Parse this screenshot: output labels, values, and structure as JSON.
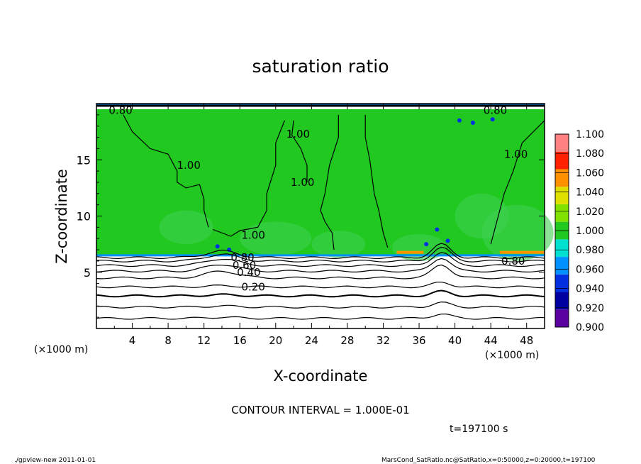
{
  "chart_data": {
    "type": "heatmap",
    "title": "saturation ratio",
    "xlabel": "X-coordinate",
    "ylabel": "Z-coordinate",
    "x_unit_left": "(×1000 m)",
    "x_unit_right": "(×1000 m)",
    "xlim": [
      0,
      50
    ],
    "ylim": [
      0,
      20
    ],
    "x_ticks": [
      4,
      8,
      12,
      16,
      20,
      24,
      28,
      32,
      36,
      40,
      44,
      48
    ],
    "x_tick_labels": [
      "4",
      "8",
      "12",
      "16",
      "20",
      "24",
      "28",
      "32",
      "36",
      "40",
      "44",
      "48"
    ],
    "y_ticks": [
      5,
      10,
      15
    ],
    "y_tick_labels": [
      "5",
      "10",
      "15"
    ],
    "colorbar": {
      "levels": [
        0.9,
        0.92,
        0.94,
        0.96,
        0.98,
        1.0,
        1.02,
        1.04,
        1.06,
        1.08,
        1.1
      ],
      "labels": [
        "0.900",
        "0.920",
        "0.940",
        "0.960",
        "0.980",
        "1.000",
        "1.020",
        "1.040",
        "1.060",
        "1.080",
        "1.100"
      ],
      "colors": [
        "#5a00a0",
        "#0000a0",
        "#0030e0",
        "#0090ff",
        "#00e0d0",
        "#20c820",
        "#80e000",
        "#e0e000",
        "#ff9000",
        "#ff2000",
        "#ff8080",
        "#ffc0c0"
      ]
    },
    "contour_labels": [
      {
        "text": "0.20",
        "x": 17.5,
        "z": 3.7
      },
      {
        "text": "0.40",
        "x": 17.0,
        "z": 5.0
      },
      {
        "text": "0.60",
        "x": 16.5,
        "z": 5.6
      },
      {
        "text": "0.80",
        "x": 16.3,
        "z": 6.3
      },
      {
        "text": "1.00",
        "x": 17.5,
        "z": 8.3
      },
      {
        "text": "1.00",
        "x": 10.3,
        "z": 14.5
      },
      {
        "text": "1.00",
        "x": 23.0,
        "z": 13.0
      },
      {
        "text": "1.00",
        "x": 22.5,
        "z": 17.3
      },
      {
        "text": "1.00",
        "x": 46.8,
        "z": 15.5
      },
      {
        "text": "0.80",
        "x": 46.5,
        "z": 6.0
      },
      {
        "text": "0.80",
        "x": 2.7,
        "z": 19.4
      },
      {
        "text": "0.80",
        "x": 44.5,
        "z": 19.4
      }
    ],
    "contour_interval_text": "CONTOUR INTERVAL = 1.000E-01",
    "time_text": "t=197100 s",
    "footer_left": "./gpview-new  2011-01-01",
    "footer_right": "MarsCond_SatRatio.nc@SatRatio,x=0:50000,z=0:20000,t=197100"
  }
}
